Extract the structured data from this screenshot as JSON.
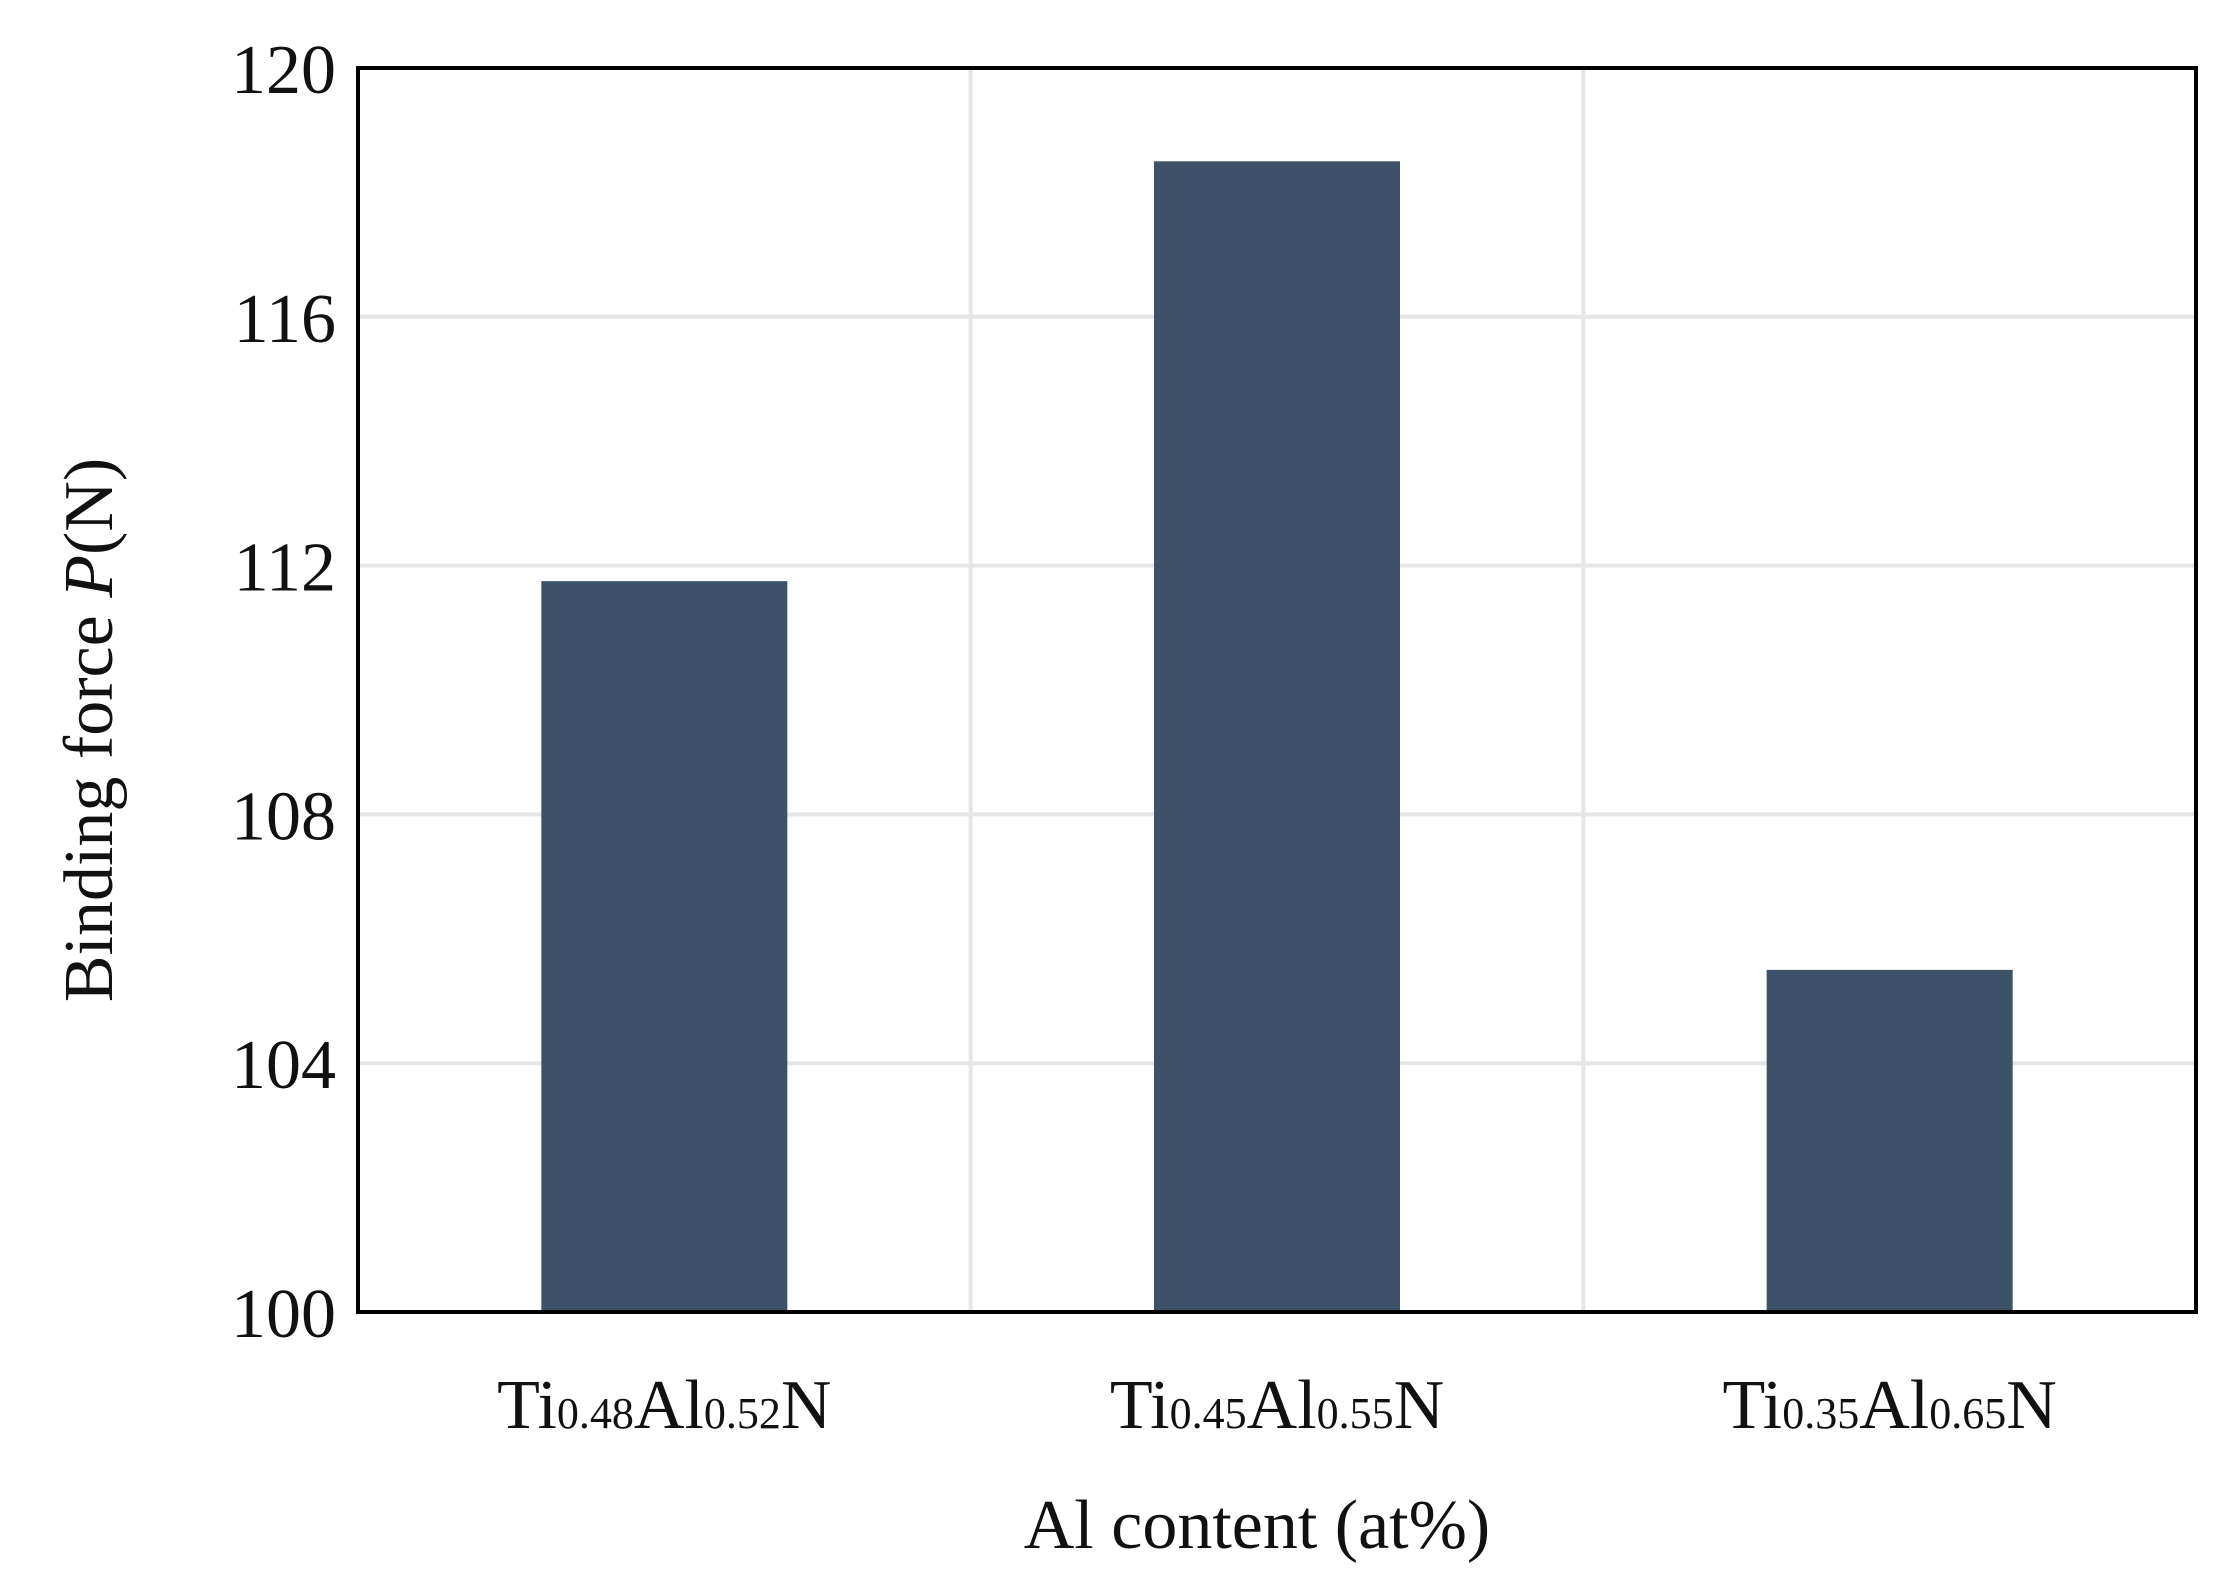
{
  "chart_data": {
    "type": "bar",
    "title": "",
    "categories": [
      {
        "base": "Ti",
        "sub1": "0.48",
        "mid": "Al",
        "sub2": "0.52",
        "end": "N"
      },
      {
        "base": "Ti",
        "sub1": "0.45",
        "mid": "Al",
        "sub2": "0.55",
        "end": "N"
      },
      {
        "base": "Ti",
        "sub1": "0.35",
        "mid": "Al",
        "sub2": "0.65",
        "end": "N"
      }
    ],
    "values": [
      111.75,
      118.5,
      105.5
    ],
    "xlabel": "Al content (at%)",
    "ylabel": {
      "prefix": "Binding force ",
      "italic": "P",
      "suffix": "(N)"
    },
    "ylim": [
      100,
      120
    ],
    "yticks": [
      "100",
      "104",
      "108",
      "112",
      "116",
      "120"
    ],
    "grid": true,
    "colors": {
      "bar": "#3d5269",
      "grid": "#e6e6e6",
      "axis": "#000000"
    }
  }
}
